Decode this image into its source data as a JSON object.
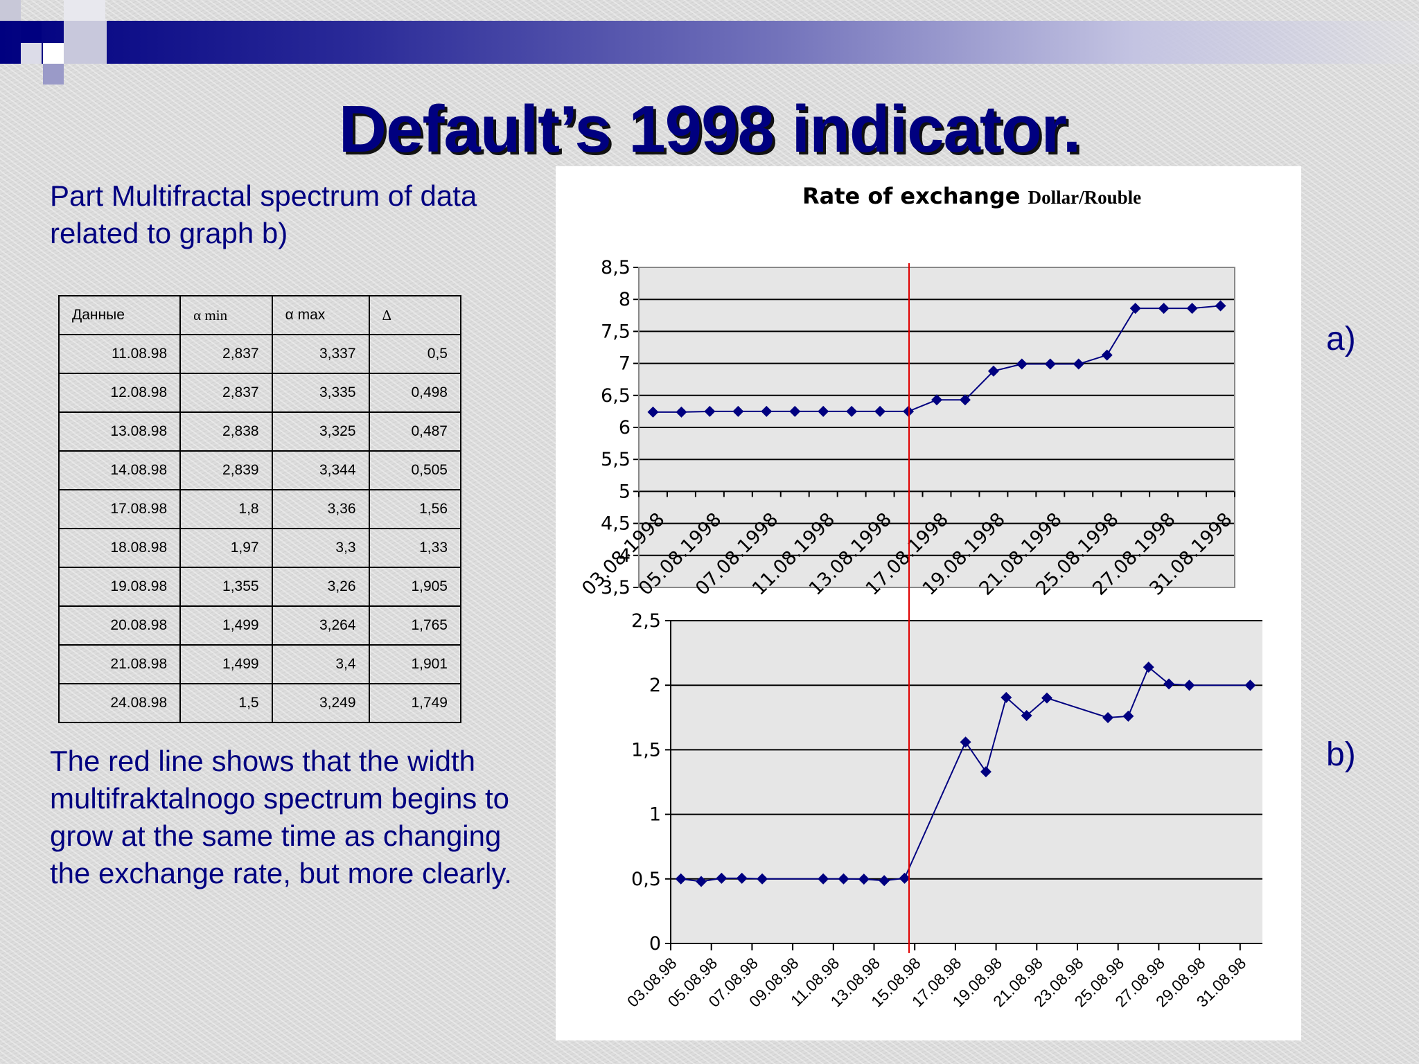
{
  "slide": {
    "title": "Default’s 1998 indicator.",
    "intro": "Part Multifractal spectrum of data related to graph b)",
    "conclusion": "The red line shows that the width multifraktalnogo spectrum begins to grow at the same time as changing the exchange rate, but more clearly.",
    "label_a": "a)",
    "label_b": "b)"
  },
  "colors": {
    "title": "#000080",
    "series": "#000080",
    "marker_line": "#e00000",
    "plot_bg": "#e6e6e6"
  },
  "table": {
    "headers": [
      "Данные",
      "α min",
      "α max",
      "Δ"
    ],
    "rows": [
      [
        "11.08.98",
        "2,837",
        "3,337",
        "0,5"
      ],
      [
        "12.08.98",
        "2,837",
        "3,335",
        "0,498"
      ],
      [
        "13.08.98",
        "2,838",
        "3,325",
        "0,487"
      ],
      [
        "14.08.98",
        "2,839",
        "3,344",
        "0,505"
      ],
      [
        "17.08.98",
        "1,8",
        "3,36",
        "1,56"
      ],
      [
        "18.08.98",
        "1,97",
        "3,3",
        "1,33"
      ],
      [
        "19.08.98",
        "1,355",
        "3,26",
        "1,905"
      ],
      [
        "20.08.98",
        "1,499",
        "3,264",
        "1,765"
      ],
      [
        "21.08.98",
        "1,499",
        "3,4",
        "1,901"
      ],
      [
        "24.08.98",
        "1,5",
        "3,249",
        "1,749"
      ]
    ]
  },
  "chart_data": [
    {
      "type": "line",
      "title": "Rate of exchange",
      "subtitle": "Dollar/Rouble",
      "xlabel": "",
      "ylabel": "",
      "ylim": [
        3.5,
        8.5
      ],
      "grid": true,
      "yticks": [
        "8,5",
        "8",
        "7,5",
        "7",
        "6,5",
        "6",
        "5,5",
        "5",
        "4,5",
        "4",
        "3,5"
      ],
      "xticks": [
        "03.08.1998",
        "05.08.1998",
        "07.08.1998",
        "11.08.1998",
        "13.08.1998",
        "17.08.1998",
        "19.08.1998",
        "21.08.1998",
        "25.08.1998",
        "27.08.1998",
        "31.08.1998"
      ],
      "values": [
        6.24,
        6.24,
        6.25,
        6.25,
        6.25,
        6.25,
        6.25,
        6.25,
        6.25,
        6.25,
        6.43,
        6.43,
        6.88,
        6.99,
        6.99,
        6.99,
        7.13,
        7.86,
        7.86,
        7.86,
        7.9
      ]
    },
    {
      "type": "line",
      "title": "",
      "xlabel": "",
      "ylabel": "",
      "ylim": [
        0,
        2.5
      ],
      "grid": true,
      "yticks": [
        "2,5",
        "2",
        "1,5",
        "1",
        "0,5",
        "0"
      ],
      "xticks": [
        "03.08.98",
        "05.08.98",
        "07.08.98",
        "09.08.98",
        "11.08.98",
        "13.08.98",
        "15.08.98",
        "17.08.98",
        "19.08.98",
        "21.08.98",
        "23.08.98",
        "25.08.98",
        "27.08.98",
        "29.08.98",
        "31.08.98"
      ],
      "points": [
        {
          "x": 0.25,
          "y": 0.5
        },
        {
          "x": 0.75,
          "y": 0.48
        },
        {
          "x": 1.25,
          "y": 0.505
        },
        {
          "x": 1.75,
          "y": 0.505
        },
        {
          "x": 2.25,
          "y": 0.5
        },
        {
          "x": 3.75,
          "y": 0.5
        },
        {
          "x": 4.25,
          "y": 0.5
        },
        {
          "x": 4.75,
          "y": 0.498
        },
        {
          "x": 5.25,
          "y": 0.487
        },
        {
          "x": 5.75,
          "y": 0.505
        },
        {
          "x": 7.25,
          "y": 1.56
        },
        {
          "x": 7.75,
          "y": 1.33
        },
        {
          "x": 8.25,
          "y": 1.905
        },
        {
          "x": 8.75,
          "y": 1.765
        },
        {
          "x": 9.25,
          "y": 1.901
        },
        {
          "x": 10.75,
          "y": 1.749
        },
        {
          "x": 11.25,
          "y": 1.76
        },
        {
          "x": 11.75,
          "y": 2.14
        },
        {
          "x": 12.25,
          "y": 2.01
        },
        {
          "x": 12.75,
          "y": 2.0
        },
        {
          "x": 14.25,
          "y": 2.0
        }
      ]
    }
  ]
}
